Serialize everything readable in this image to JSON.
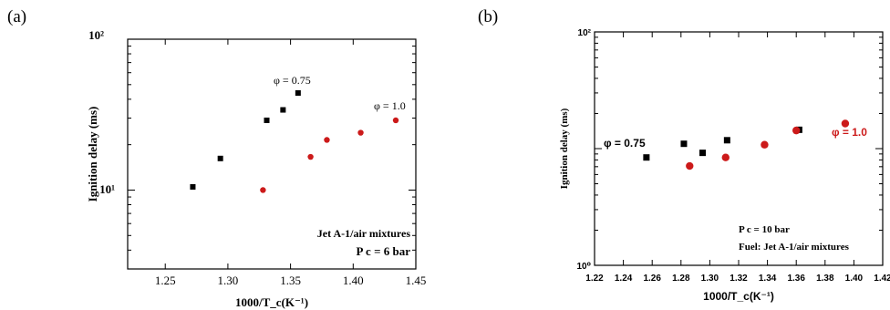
{
  "colors": {
    "black_series": "#000000",
    "red_series": "#cc1a1a",
    "axis": "#000000"
  },
  "chart_data": [
    {
      "type": "scatter",
      "panel_label": "(a)",
      "xlabel": "1000/T_c(K⁻¹)",
      "ylabel": "Ignition delay (ms)",
      "xlim": [
        1.22,
        1.45
      ],
      "ylim": [
        3,
        100
      ],
      "yscale": "log",
      "xticks": [
        1.25,
        1.3,
        1.35,
        1.4,
        1.45
      ],
      "xtick_labels": [
        "1.25",
        "1.30",
        "1.35",
        "1.40",
        "1.45"
      ],
      "ytick_labels": [
        "10¹",
        "10²"
      ],
      "annotations": [
        "φ = 0.75",
        "φ = 1.0",
        "Jet A-1/air mixtures",
        "P c = 6 bar"
      ],
      "series": [
        {
          "marker": "square",
          "color": "#000000",
          "x": [
            1.272,
            1.294,
            1.331,
            1.344,
            1.356
          ],
          "y": [
            10.5,
            16.2,
            29.0,
            34.0,
            44.0
          ]
        },
        {
          "marker": "circle",
          "color": "#cc1a1a",
          "x": [
            1.328,
            1.366,
            1.379,
            1.406,
            1.434
          ],
          "y": [
            10.0,
            16.6,
            21.5,
            24.0,
            29.0
          ]
        }
      ]
    },
    {
      "type": "scatter",
      "panel_label": "(b)",
      "xlabel": "1000/T_c(K⁻¹)",
      "ylabel": "Ignition delay (ms)",
      "xlim": [
        1.22,
        1.42
      ],
      "ylim": [
        1,
        100
      ],
      "yscale": "log",
      "xticks": [
        1.22,
        1.24,
        1.26,
        1.28,
        1.3,
        1.32,
        1.34,
        1.36,
        1.38,
        1.4,
        1.42
      ],
      "xtick_labels": [
        "1.22",
        "1.24",
        "1.26",
        "1.28",
        "1.30",
        "1.32",
        "1.34",
        "1.36",
        "1.38",
        "1.40",
        "1.42"
      ],
      "ytick_labels": [
        "10⁰",
        "10²"
      ],
      "annotations": [
        "φ = 0.75",
        "φ = 1.0",
        "P c = 10 bar",
        "Fuel: Jet A-1/air mixtures"
      ],
      "series": [
        {
          "marker": "square",
          "color": "#000000",
          "x": [
            1.256,
            1.282,
            1.295,
            1.312,
            1.362
          ],
          "y": [
            8.4,
            11.0,
            9.2,
            11.8,
            14.5
          ]
        },
        {
          "marker": "circle",
          "color": "#cc1a1a",
          "x": [
            1.286,
            1.311,
            1.338,
            1.36,
            1.394
          ],
          "y": [
            7.1,
            8.4,
            10.8,
            14.3,
            16.4
          ]
        }
      ]
    }
  ]
}
